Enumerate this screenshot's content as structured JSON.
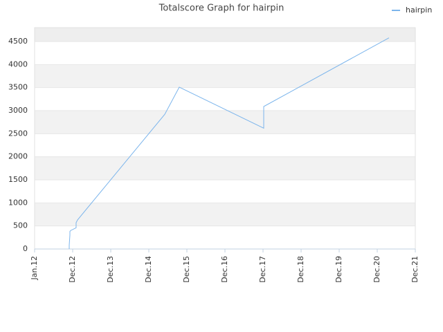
{
  "chart_data": {
    "type": "line",
    "title": "Totalscore Graph for hairpin",
    "x": [
      0.909,
      0.909,
      0.927,
      0.927,
      0.945,
      1.09,
      1.09,
      1.127,
      3.418,
      3.8,
      6.018,
      6.018,
      9.309
    ],
    "series": [
      {
        "name": "hairpin",
        "color": "#7cb5ec",
        "values": [
          0,
          80,
          300,
          380,
          400,
          460,
          570,
          630,
          2920,
          3510,
          2620,
          3090,
          4580
        ]
      }
    ],
    "xlim": [
      0,
      10
    ],
    "xticks": [
      {
        "value": 0,
        "label": "Jan.12"
      },
      {
        "value": 1,
        "label": "Dec.12"
      },
      {
        "value": 2,
        "label": "Dec.13"
      },
      {
        "value": 3,
        "label": "Dec.14"
      },
      {
        "value": 4,
        "label": "Dec.15"
      },
      {
        "value": 5,
        "label": "Dec.16"
      },
      {
        "value": 6,
        "label": "Dec.17"
      },
      {
        "value": 7,
        "label": "Dec.18"
      },
      {
        "value": 8,
        "label": "Dec.19"
      },
      {
        "value": 9,
        "label": "Dec.20"
      },
      {
        "value": 10,
        "label": "Dec.21"
      }
    ],
    "ylim": [
      0,
      4800
    ],
    "yticks": [
      0,
      500,
      1000,
      1500,
      2000,
      2500,
      3000,
      3500,
      4000,
      4500
    ],
    "grid": true,
    "legend": "top-right"
  }
}
